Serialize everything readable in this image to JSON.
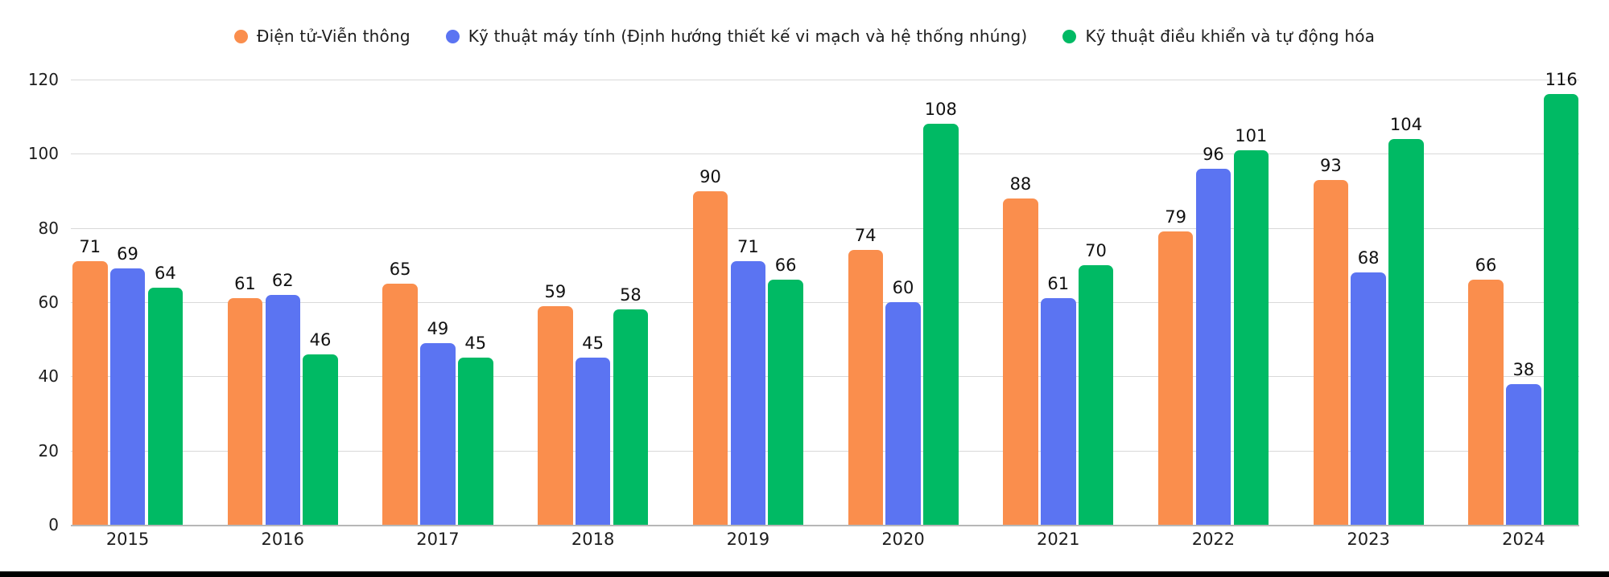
{
  "chart_data": {
    "type": "bar",
    "title": "",
    "categories": [
      "2015",
      "2016",
      "2017",
      "2018",
      "2019",
      "2020",
      "2021",
      "2022",
      "2023",
      "2024"
    ],
    "series": [
      {
        "name": "Điện tử-Viễn thông",
        "color": "#FA8E4D",
        "values": [
          71,
          61,
          65,
          59,
          90,
          74,
          88,
          79,
          93,
          66
        ]
      },
      {
        "name": "Kỹ thuật máy tính (Định hướng thiết kế vi mạch và hệ thống nhúng)",
        "color": "#5B74F2",
        "values": [
          69,
          62,
          49,
          45,
          71,
          60,
          61,
          96,
          68,
          38
        ]
      },
      {
        "name": "Kỹ thuật điều khiển và tự động hóa",
        "color": "#00BA64",
        "values": [
          64,
          46,
          45,
          58,
          66,
          108,
          70,
          101,
          104,
          116
        ]
      }
    ],
    "y_axis": {
      "min": 0,
      "max": 120,
      "ticks": [
        0,
        20,
        40,
        60,
        80,
        100,
        120
      ]
    },
    "grid": true,
    "legend_position": "top",
    "value_labels": true
  },
  "colors": {
    "gridline": "#d9d9d9",
    "axis_line": "#b7b7b7",
    "text": "#1d1d1d"
  }
}
